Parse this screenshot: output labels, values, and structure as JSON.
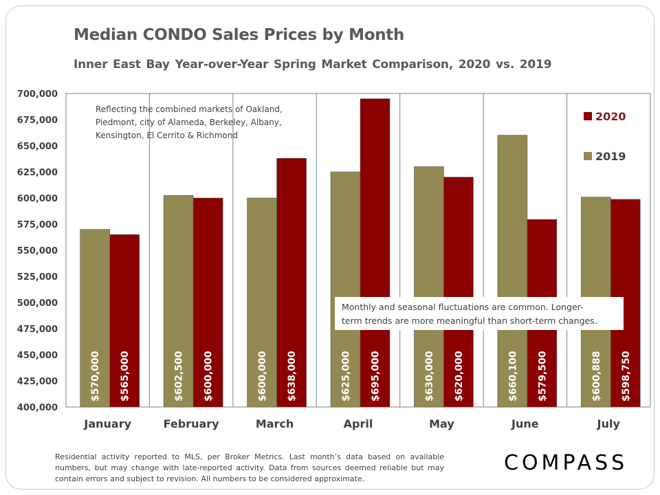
{
  "title": "Median CONDO Sales Prices by Month",
  "subtitle": "Inner East Bay Year-over-Year  Spring Market Comparison,  2020 vs. 2019",
  "footnote": "Residential activity reported to MLS, per Broker Metrics. Last month’s data based on available numbers, but may change with late-reported activity. Data from sources deemed reliable but may contain errors and subject to revision. All numbers to be considered approximate.",
  "logo": "COMPASS",
  "chart_data": {
    "type": "bar",
    "categories": [
      "January",
      "February",
      "March",
      "April",
      "May",
      "June",
      "July"
    ],
    "series": [
      {
        "name": "2019",
        "color": "#938953",
        "values": [
          570000,
          602500,
          600000,
          625000,
          630000,
          660100,
          600888
        ],
        "labels": [
          "$570,000",
          "$602,500",
          "$600,000",
          "$625,000",
          "$630,000",
          "$660,100",
          "$600,888"
        ]
      },
      {
        "name": "2020",
        "color": "#8b0000",
        "values": [
          565000,
          600000,
          638000,
          695000,
          620000,
          579500,
          598750
        ],
        "labels": [
          "$565,000",
          "$600,000",
          "$638,000",
          "$695,000",
          "$620,000",
          "$579,500",
          "$598,750"
        ]
      }
    ],
    "ylim": [
      400000,
      700000
    ],
    "yticks": [
      400000,
      425000,
      450000,
      475000,
      500000,
      525000,
      550000,
      575000,
      600000,
      625000,
      650000,
      675000,
      700000
    ],
    "ytick_labels": [
      "400,000",
      "425,000",
      "450,000",
      "475,000",
      "500,000",
      "525,000",
      "550,000",
      "575,000",
      "600,000",
      "625,000",
      "650,000",
      "675,000",
      "700,000"
    ],
    "legend": [
      {
        "label": "2020",
        "color": "#8b0000"
      },
      {
        "label": "2019",
        "color": "#938953"
      }
    ],
    "legend_position": "top-right",
    "annotations": [
      "Reflecting the combined markets of Oakland, Piedmont, city of Alameda, Berkeley, Albany, Kensington, El Cerrito & Richmond",
      "Monthly and seasonal fluctuations are common. Longer-term trends are more meaningful than short-term changes."
    ]
  }
}
